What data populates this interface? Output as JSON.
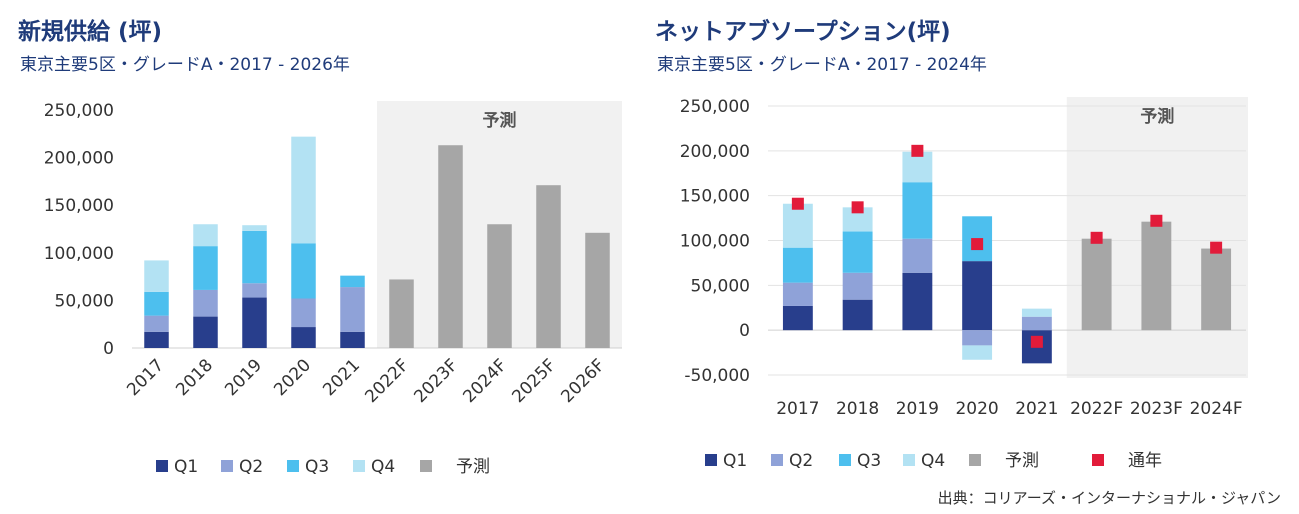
{
  "colors": {
    "q1": "#283e8c",
    "q2": "#8fa2d8",
    "q3": "#4dbfee",
    "q4": "#b3e2f3",
    "forecast": "#a6a6a6",
    "forecast_band": "#f1f1f1",
    "annual": "#e21b3a",
    "title": "#1f3b7a"
  },
  "left": {
    "title": "新規供給 (坪)",
    "subtitle": "東京主要5区・グレードA・2017 - 2026年"
  },
  "right": {
    "title": "ネットアブソープション(坪)",
    "subtitle": "東京主要5区・グレードA・2017 - 2024年"
  },
  "source": "出典：コリアーズ・インターナショナル・ジャパン",
  "chart_data": [
    {
      "type": "bar",
      "stacked": true,
      "title": "新規供給 (坪)",
      "subtitle": "東京主要5区・グレードA・2017 - 2026年",
      "categories": [
        "2017",
        "2018",
        "2019",
        "2020",
        "2021",
        "2022F",
        "2023F",
        "2024F",
        "2025F",
        "2026F"
      ],
      "series": [
        {
          "name": "Q1",
          "values": [
            17000,
            33000,
            53000,
            22000,
            17000,
            null,
            null,
            null,
            null,
            null
          ]
        },
        {
          "name": "Q2",
          "values": [
            17000,
            28000,
            15000,
            30000,
            47000,
            null,
            null,
            null,
            null,
            null
          ]
        },
        {
          "name": "Q3",
          "values": [
            25000,
            46000,
            55000,
            58000,
            12000,
            null,
            null,
            null,
            null,
            null
          ]
        },
        {
          "name": "Q4",
          "values": [
            33000,
            23000,
            6000,
            112000,
            0,
            null,
            null,
            null,
            null,
            null
          ]
        },
        {
          "name": "予測",
          "values": [
            null,
            null,
            null,
            null,
            null,
            72000,
            213000,
            130000,
            171000,
            121000
          ]
        }
      ],
      "forecast_band": {
        "label": "予測",
        "from": "2022F",
        "to": "2026F"
      },
      "yticks": [
        "250,000",
        "200,000",
        "150,000",
        "100,000",
        "50,000",
        "0"
      ],
      "ylim": [
        0,
        250000
      ],
      "legend": [
        "Q1",
        "Q2",
        "Q3",
        "Q4",
        "予測"
      ],
      "legend_position": "bottom",
      "grid": false
    },
    {
      "type": "bar",
      "stacked": true,
      "title": "ネットアブソープション(坪)",
      "subtitle": "東京主要5区・グレードA・2017 - 2024年",
      "categories": [
        "2017",
        "2018",
        "2019",
        "2020",
        "2021",
        "2022F",
        "2023F",
        "2024F"
      ],
      "series": [
        {
          "name": "Q1",
          "values": [
            27000,
            34000,
            64000,
            77000,
            -37000,
            null,
            null,
            null
          ]
        },
        {
          "name": "Q2",
          "values": [
            26000,
            30000,
            38000,
            -17000,
            15000,
            null,
            null,
            null
          ]
        },
        {
          "name": "Q3",
          "values": [
            39000,
            46000,
            63000,
            50000,
            0,
            null,
            null,
            null
          ]
        },
        {
          "name": "Q4",
          "values": [
            49000,
            27000,
            34000,
            -16000,
            9000,
            null,
            null,
            null
          ]
        },
        {
          "name": "予測",
          "values": [
            null,
            null,
            null,
            null,
            null,
            102000,
            121000,
            91000
          ]
        }
      ],
      "annual": {
        "name": "通年",
        "values": [
          141000,
          137000,
          200000,
          96000,
          -13000,
          103000,
          122000,
          92000
        ]
      },
      "forecast_band": {
        "label": "予測",
        "from": "2022F",
        "to": "2024F"
      },
      "yticks": [
        "250,000",
        "200,000",
        "150,000",
        "100,000",
        "50,000",
        "0",
        "-50,000"
      ],
      "ylim": [
        -50000,
        250000
      ],
      "legend": [
        "Q1",
        "Q2",
        "Q3",
        "Q4",
        "予測",
        "通年"
      ],
      "legend_position": "bottom",
      "grid": true
    }
  ]
}
